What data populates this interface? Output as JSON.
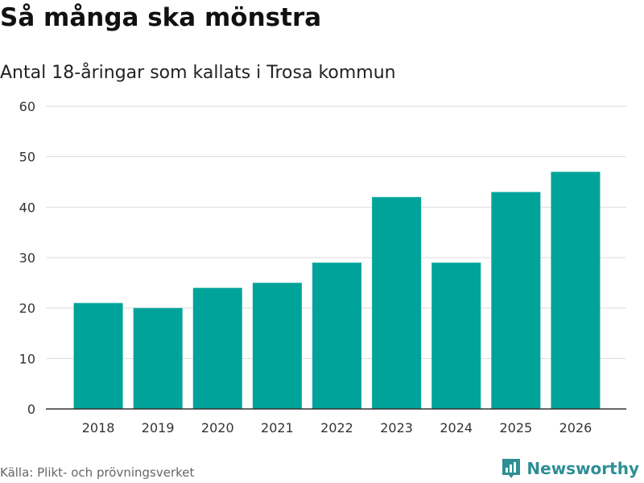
{
  "title": "Så många ska mönstra",
  "subtitle": "Antal 18-åringar som kallats i Trosa kommun",
  "source": "Källa: Plikt- och prövningsverket",
  "brand": {
    "name": "Newsworthy",
    "icon": "newsworthy-logo-icon",
    "color": "#2e8f95"
  },
  "colors": {
    "bar": "#00a39a",
    "grid": "#dddddd",
    "axis": "#333333",
    "tick_text": "#333333"
  },
  "chart_data": {
    "type": "bar",
    "title": "Så många ska mönstra",
    "subtitle": "Antal 18-åringar som kallats i Trosa kommun",
    "xlabel": "",
    "ylabel": "",
    "categories": [
      "2018",
      "2019",
      "2020",
      "2021",
      "2022",
      "2023",
      "2024",
      "2025",
      "2026"
    ],
    "values": [
      21,
      20,
      24,
      25,
      29,
      42,
      29,
      43,
      47
    ],
    "ylim": [
      0,
      60
    ],
    "yticks": [
      0,
      10,
      20,
      30,
      40,
      50,
      60
    ],
    "grid": true,
    "legend": "none"
  }
}
